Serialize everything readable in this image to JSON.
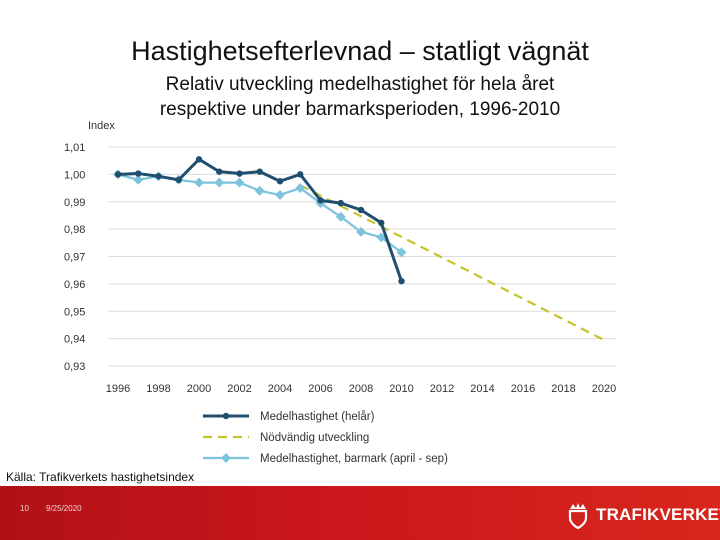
{
  "slide": {
    "title": "Hastighetsefterlevnad – statligt vägnät",
    "subtitle_line1": "Relativ utveckling medelhastighet för hela året",
    "subtitle_line2": "respektive under barmarksperioden, 1996-2010",
    "source": "Källa: Trafikverkets hastighetsindex",
    "page_number": "10",
    "date": "9/25/2020",
    "logo_text": "TRAFIKVERKET"
  },
  "colors": {
    "footer": "#c8161c",
    "helar": "#1f4e6e",
    "barmark": "#7cc3dd",
    "nodvandig": "#c4c42a"
  },
  "chart_data": {
    "type": "line",
    "title": "",
    "ylabel": "Index",
    "xlabel": "",
    "xlim": [
      1996,
      2020
    ],
    "ylim": [
      0.93,
      1.01
    ],
    "x_ticks": [
      1996,
      1998,
      2000,
      2002,
      2004,
      2006,
      2008,
      2010,
      2012,
      2014,
      2016,
      2018,
      2020
    ],
    "x_tick_labels": [
      "1996",
      "1998",
      "2000",
      "2002",
      "2004",
      "2006",
      "2008",
      "2010",
      "2012",
      "2014",
      "2016",
      "2018",
      "2020"
    ],
    "y_ticks": [
      0.93,
      0.94,
      0.95,
      0.96,
      0.97,
      0.98,
      0.99,
      1.0,
      1.01
    ],
    "y_tick_labels": [
      "0,93",
      "0,94",
      "0,95",
      "0,96",
      "0,97",
      "0,98",
      "0,99",
      "1,00",
      "1,01"
    ],
    "grid": "horizontal",
    "series": [
      {
        "name": "Medelhastighet (helår)",
        "style": "solid-marker",
        "x": [
          1996,
          1997,
          1998,
          1999,
          2000,
          2001,
          2002,
          2003,
          2004,
          2005,
          2006,
          2007,
          2008,
          2009,
          2010
        ],
        "values": [
          1.0,
          1.0003,
          0.9993,
          0.998,
          1.0055,
          1.001,
          1.0003,
          1.001,
          0.9975,
          1.0,
          0.9905,
          0.9895,
          0.987,
          0.9823,
          0.961
        ]
      },
      {
        "name": "Nödvändig utveckling",
        "style": "dashed",
        "x": [
          2005,
          2020
        ],
        "values": [
          0.996,
          0.9395
        ]
      },
      {
        "name": "Medelhastighet, barmark (april - sep)",
        "style": "solid-marker",
        "x": [
          1996,
          1997,
          1998,
          1999,
          2000,
          2001,
          2002,
          2003,
          2004,
          2005,
          2006,
          2007,
          2008,
          2009,
          2010
        ],
        "values": [
          1.0,
          0.998,
          0.9993,
          0.998,
          0.997,
          0.997,
          0.997,
          0.994,
          0.9925,
          0.995,
          0.9895,
          0.9845,
          0.979,
          0.977,
          0.9715
        ]
      }
    ],
    "legend_position": "bottom"
  }
}
